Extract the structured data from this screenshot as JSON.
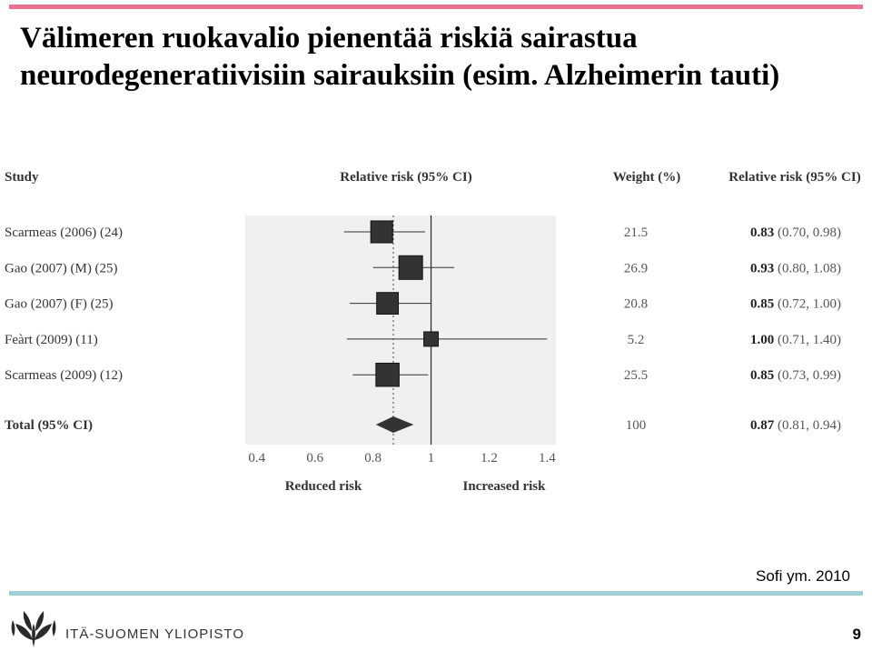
{
  "slide": {
    "title_line1": "Välimeren ruokavalio pienentää riskiä sairastua",
    "title_line2": "neurodegeneratiivisiin sairauksiin (esim. Alzheimerin tauti)",
    "citation": "Sofi ym. 2010",
    "university": "ITÄ-SUOMEN YLIOPISTO",
    "page_number": "9",
    "colors": {
      "top_bar": "#e8738f",
      "bottom_bar": "#9ecfd8",
      "logo": "#2a2a2a"
    },
    "logo_icon": "university-leaf-logo-icon"
  },
  "chart_data": {
    "type": "forest",
    "headers": {
      "study": "Study",
      "rr_plot": "Relative risk (95% CI)",
      "weight": "Weight (%)",
      "rr_value": "Relative risk (95% CI)"
    },
    "studies": [
      {
        "label": "Scarmeas (2006) (24)",
        "rr": 0.83,
        "lo": 0.7,
        "hi": 0.98,
        "weight": 21.5,
        "weight_text": "21.5",
        "rr_text": "0.83",
        "ci_text": " (0.70, 0.98)"
      },
      {
        "label": "Gao (2007) (M) (25)",
        "rr": 0.93,
        "lo": 0.8,
        "hi": 1.08,
        "weight": 26.9,
        "weight_text": "26.9",
        "rr_text": "0.93",
        "ci_text": " (0.80, 1.08)"
      },
      {
        "label": "Gao (2007) (F) (25)",
        "rr": 0.85,
        "lo": 0.72,
        "hi": 1.0,
        "weight": 20.8,
        "weight_text": "20.8",
        "rr_text": "0.85",
        "ci_text": " (0.72, 1.00)"
      },
      {
        "label": "Feàrt (2009) (11)",
        "rr": 1.0,
        "lo": 0.71,
        "hi": 1.4,
        "weight": 5.2,
        "weight_text": "5.2",
        "rr_text": "1.00",
        "ci_text": " (0.71, 1.40)"
      },
      {
        "label": "Scarmeas (2009) (12)",
        "rr": 0.85,
        "lo": 0.73,
        "hi": 0.99,
        "weight": 25.5,
        "weight_text": "25.5",
        "rr_text": "0.85",
        "ci_text": " (0.73, 0.99)"
      }
    ],
    "total": {
      "label": "Total (95% CI)",
      "rr": 0.87,
      "lo": 0.81,
      "hi": 0.94,
      "weight_text": "100",
      "rr_text": "0.87",
      "ci_text": " (0.81, 0.94)"
    },
    "x_ticks": [
      0.4,
      0.6,
      0.8,
      1,
      1.2,
      1.4
    ],
    "x_tick_labels": [
      "0.4",
      "0.6",
      "0.8",
      "1",
      "1.2",
      "1.4"
    ],
    "xlim": [
      0.36,
      1.43
    ],
    "reference_line": 1,
    "dotted_line": 0.87,
    "left_label": "Reduced risk",
    "right_label": "Increased risk"
  }
}
